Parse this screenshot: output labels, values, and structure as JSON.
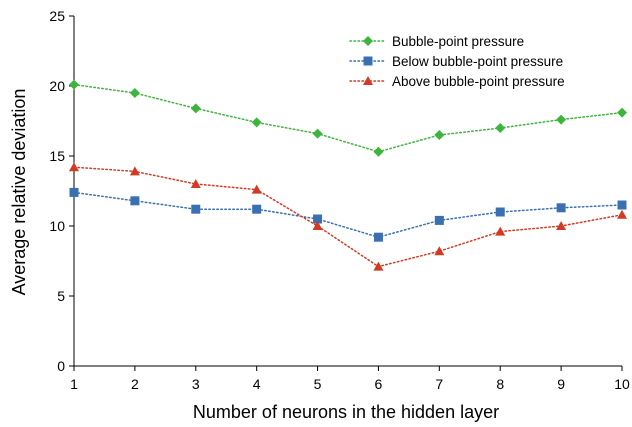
{
  "chart_data": {
    "type": "line",
    "title": "",
    "xlabel": "Number of neurons in the hidden layer",
    "ylabel": "Average relative deviation",
    "x": [
      1,
      2,
      3,
      4,
      5,
      6,
      7,
      8,
      9,
      10
    ],
    "xlim": [
      1,
      10
    ],
    "ylim": [
      0,
      25
    ],
    "xticks": [
      "1",
      "2",
      "3",
      "4",
      "5",
      "6",
      "7",
      "8",
      "9",
      "10"
    ],
    "yticks": [
      "0",
      "5",
      "10",
      "15",
      "20",
      "25"
    ],
    "grid": false,
    "legend_position": "top-right",
    "series": [
      {
        "name": "Bubble-point pressure",
        "color": "#3cb53c",
        "marker": "diamond",
        "line_style": "dotted",
        "values": [
          20.1,
          19.5,
          18.4,
          17.4,
          16.6,
          15.3,
          16.5,
          17.0,
          17.6,
          18.1
        ]
      },
      {
        "name": "Below bubble-point pressure",
        "color": "#3a6fb0",
        "marker": "square",
        "line_style": "dotted",
        "values": [
          12.4,
          11.8,
          11.2,
          11.2,
          10.5,
          9.2,
          10.4,
          11.0,
          11.3,
          11.5
        ]
      },
      {
        "name": "Above bubble-point pressure",
        "color": "#d23a24",
        "marker": "triangle",
        "line_style": "dotted",
        "values": [
          14.2,
          13.9,
          13.0,
          12.6,
          10.0,
          7.1,
          8.2,
          9.6,
          10.0,
          10.8
        ]
      }
    ]
  }
}
